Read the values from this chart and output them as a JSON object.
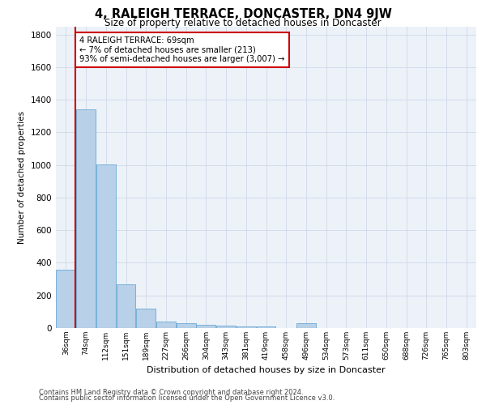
{
  "title": "4, RALEIGH TERRACE, DONCASTER, DN4 9JW",
  "subtitle": "Size of property relative to detached houses in Doncaster",
  "xlabel": "Distribution of detached houses by size in Doncaster",
  "ylabel": "Number of detached properties",
  "categories": [
    "36sqm",
    "74sqm",
    "112sqm",
    "151sqm",
    "189sqm",
    "227sqm",
    "266sqm",
    "304sqm",
    "343sqm",
    "381sqm",
    "419sqm",
    "458sqm",
    "496sqm",
    "534sqm",
    "573sqm",
    "611sqm",
    "650sqm",
    "688sqm",
    "726sqm",
    "765sqm",
    "803sqm"
  ],
  "values": [
    360,
    1340,
    1005,
    270,
    120,
    40,
    32,
    22,
    15,
    10,
    10,
    0,
    30,
    0,
    0,
    0,
    0,
    0,
    0,
    0,
    0
  ],
  "bar_color": "#b8d0e8",
  "bar_edgecolor": "#6aaad4",
  "annotation_text": "4 RALEIGH TERRACE: 69sqm\n← 7% of detached houses are smaller (213)\n93% of semi-detached houses are larger (3,007) →",
  "annotation_box_color": "#ffffff",
  "annotation_box_edgecolor": "#cc0000",
  "vline_color": "#cc0000",
  "vline_x": 0.47,
  "ylim": [
    0,
    1850
  ],
  "yticks": [
    0,
    200,
    400,
    600,
    800,
    1000,
    1200,
    1400,
    1600,
    1800
  ],
  "grid_color": "#d0d8e8",
  "background_color": "#edf2f9",
  "footer_line1": "Contains HM Land Registry data © Crown copyright and database right 2024.",
  "footer_line2": "Contains public sector information licensed under the Open Government Licence v3.0."
}
